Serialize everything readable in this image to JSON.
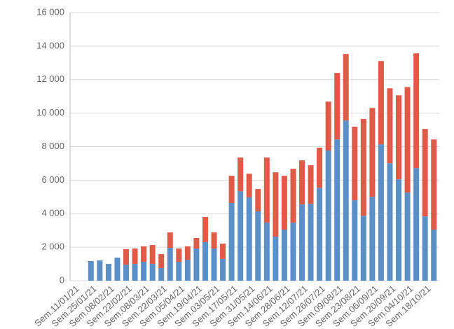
{
  "chart_data": {
    "type": "stacked_bar",
    "categories": [
      "Sem.11/01/21",
      null,
      "Sem.25/01/21",
      null,
      "Sem.08/02/21",
      null,
      "Sem.22/02/21",
      null,
      "Sem.08/03/21",
      null,
      "Sem.22/03/21",
      null,
      "Sem.05/04/21",
      null,
      "Sem.19/04/21",
      null,
      "Sem.03/05/21",
      null,
      "Sem.17/05/21",
      null,
      "Sem.31/05/21",
      null,
      "Sem.14/06/21",
      null,
      "Sem.28/06/21",
      null,
      "Sem.12/07/21",
      null,
      "Sem.26/07/21",
      null,
      "Sem.09/08/21",
      null,
      "Sem.23/08/21",
      null,
      "Sem.06/09/21",
      null,
      "Sem.20/09/21",
      null,
      "Sem.04/10/21",
      null,
      "Sem.18/10/21"
    ],
    "series": [
      {
        "color": "#5b8fc7",
        "values": [
          null,
          1170,
          1210,
          1000,
          1380,
          960,
          1000,
          1130,
          1000,
          750,
          1960,
          1130,
          1250,
          1920,
          2300,
          1920,
          1300,
          4640,
          5340,
          4970,
          4140,
          3470,
          2630,
          3050,
          3470,
          4550,
          4590,
          5550,
          7770,
          8430,
          9560,
          4800,
          3880,
          5010,
          8140,
          7010,
          6050,
          5260,
          6720,
          3840,
          3050
        ]
      },
      {
        "color": "#e05a47",
        "values": [
          null,
          null,
          null,
          null,
          null,
          920,
          920,
          920,
          1130,
          840,
          920,
          790,
          800,
          630,
          1500,
          960,
          910,
          1620,
          2010,
          1420,
          1330,
          3880,
          3840,
          3210,
          3210,
          2630,
          2300,
          2390,
          2920,
          3970,
          3970,
          4390,
          5770,
          5300,
          4970,
          4470,
          5010,
          6300,
          6850,
          5220,
          5380
        ]
      }
    ],
    "ylim": [
      0,
      16000
    ],
    "yticks": [
      0,
      {
        "value": 2000,
        "label": "2 000"
      },
      {
        "value": 4000,
        "label": "4 000"
      },
      {
        "value": 6000,
        "label": "6 000"
      },
      {
        "value": 8000,
        "label": "8 000"
      },
      {
        "value": 10000,
        "label": "10 000"
      },
      {
        "value": 12000,
        "label": "12 000"
      },
      {
        "value": 14000,
        "label": "14 000"
      },
      {
        "value": 16000,
        "label": "16 000"
      }
    ],
    "grid": true
  }
}
